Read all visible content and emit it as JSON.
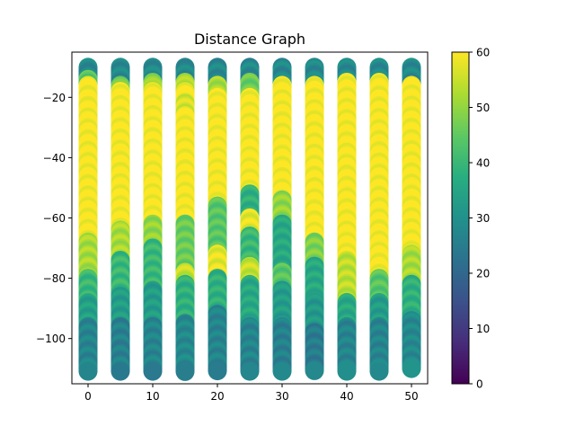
{
  "chart_data": {
    "type": "scatter",
    "title": "Distance Graph",
    "xlabel": "",
    "ylabel": "",
    "xlim": [
      -2.5,
      52.5
    ],
    "ylim": [
      -115,
      -5
    ],
    "x_ticks": [
      0,
      10,
      20,
      30,
      40,
      50
    ],
    "y_ticks": [
      -20,
      -40,
      -60,
      -80,
      -100
    ],
    "grid": false,
    "colorbar": {
      "colormap": "viridis",
      "range": [
        0,
        60
      ],
      "ticks": [
        0,
        10,
        20,
        30,
        40,
        50,
        60
      ]
    },
    "columns_x": [
      0,
      5,
      10,
      15,
      20,
      25,
      30,
      35,
      40,
      45,
      50
    ],
    "y_span": [
      -10,
      -110
    ],
    "columns": [
      {
        "x": 0,
        "segments": [
          [
            -10,
            -14,
            28
          ],
          [
            -14,
            -16,
            44
          ],
          [
            -16,
            -68,
            60
          ],
          [
            -68,
            -80,
            52
          ],
          [
            -80,
            -88,
            40
          ],
          [
            -88,
            -96,
            34
          ],
          [
            -96,
            -111,
            27
          ]
        ]
      },
      {
        "x": 5,
        "segments": [
          [
            -10,
            -16,
            28
          ],
          [
            -16,
            -18,
            46
          ],
          [
            -18,
            -64,
            60
          ],
          [
            -64,
            -74,
            52
          ],
          [
            -74,
            -86,
            40
          ],
          [
            -86,
            -96,
            33
          ],
          [
            -96,
            -111,
            26
          ]
        ]
      },
      {
        "x": 10,
        "segments": [
          [
            -10,
            -15,
            28
          ],
          [
            -15,
            -18,
            50
          ],
          [
            -18,
            -62,
            60
          ],
          [
            -62,
            -70,
            50
          ],
          [
            -70,
            -84,
            40
          ],
          [
            -84,
            -96,
            33
          ],
          [
            -96,
            -111,
            27
          ]
        ]
      },
      {
        "x": 15,
        "segments": [
          [
            -10,
            -15,
            28
          ],
          [
            -15,
            -18,
            52
          ],
          [
            -18,
            -22,
            60
          ],
          [
            -22,
            -26,
            56
          ],
          [
            -26,
            -62,
            60
          ],
          [
            -62,
            -78,
            46
          ],
          [
            -78,
            -82,
            55
          ],
          [
            -82,
            -95,
            38
          ],
          [
            -95,
            -111,
            28
          ]
        ]
      },
      {
        "x": 20,
        "segments": [
          [
            -10,
            -16,
            28
          ],
          [
            -16,
            -20,
            52
          ],
          [
            -20,
            -56,
            60
          ],
          [
            -56,
            -72,
            44
          ],
          [
            -72,
            -80,
            58
          ],
          [
            -80,
            -92,
            38
          ],
          [
            -92,
            -111,
            27
          ]
        ]
      },
      {
        "x": 25,
        "segments": [
          [
            -10,
            -15,
            28
          ],
          [
            -15,
            -20,
            46
          ],
          [
            -20,
            -52,
            60
          ],
          [
            -52,
            -60,
            38
          ],
          [
            -60,
            -66,
            58
          ],
          [
            -66,
            -76,
            40
          ],
          [
            -76,
            -82,
            55
          ],
          [
            -82,
            -96,
            36
          ],
          [
            -96,
            -111,
            27
          ]
        ]
      },
      {
        "x": 30,
        "segments": [
          [
            -10,
            -16,
            28
          ],
          [
            -16,
            -54,
            60
          ],
          [
            -54,
            -62,
            50
          ],
          [
            -62,
            -78,
            36
          ],
          [
            -78,
            -84,
            44
          ],
          [
            -84,
            -96,
            33
          ],
          [
            -96,
            -111,
            26
          ]
        ]
      },
      {
        "x": 35,
        "segments": [
          [
            -10,
            -16,
            28
          ],
          [
            -16,
            -68,
            60
          ],
          [
            -68,
            -76,
            48
          ],
          [
            -76,
            -88,
            36
          ],
          [
            -88,
            -98,
            32
          ],
          [
            -98,
            -111,
            25
          ]
        ]
      },
      {
        "x": 40,
        "segments": [
          [
            -10,
            -15,
            28
          ],
          [
            -15,
            -74,
            60
          ],
          [
            -74,
            -88,
            54
          ],
          [
            -88,
            -96,
            36
          ],
          [
            -96,
            -111,
            27
          ]
        ]
      },
      {
        "x": 45,
        "segments": [
          [
            -10,
            -15,
            28
          ],
          [
            -15,
            -80,
            60
          ],
          [
            -80,
            -88,
            44
          ],
          [
            -88,
            -96,
            33
          ],
          [
            -96,
            -111,
            27
          ]
        ]
      },
      {
        "x": 50,
        "segments": [
          [
            -10,
            -16,
            28
          ],
          [
            -16,
            -72,
            60
          ],
          [
            -72,
            -82,
            52
          ],
          [
            -82,
            -94,
            38
          ],
          [
            -94,
            -110,
            28
          ]
        ]
      }
    ]
  }
}
